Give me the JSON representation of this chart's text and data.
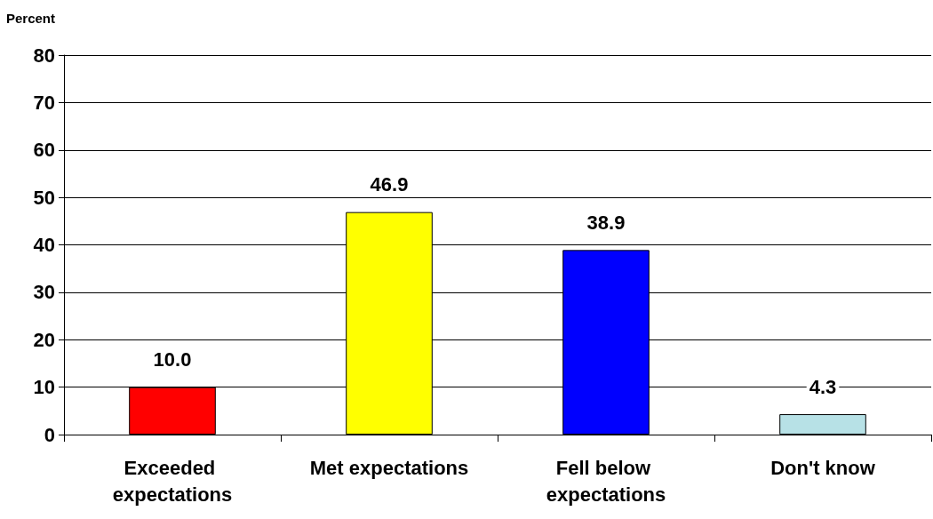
{
  "chart_data": {
    "type": "bar",
    "ylabel": "Percent",
    "categories": [
      "Exceeded expectations",
      "Met expectations",
      "Fell below expectations",
      "Don't know"
    ],
    "values": [
      10.0,
      46.9,
      38.9,
      4.3
    ],
    "colors": [
      "#ff0000",
      "#ffff00",
      "#0000ff",
      "#b7e1e6"
    ],
    "value_labels": [
      "10.0",
      "46.9",
      "38.9",
      "4.3"
    ],
    "ylim": [
      0,
      80
    ],
    "yticks": [
      0,
      10,
      20,
      30,
      40,
      50,
      60,
      70,
      80
    ],
    "grid": "y"
  }
}
